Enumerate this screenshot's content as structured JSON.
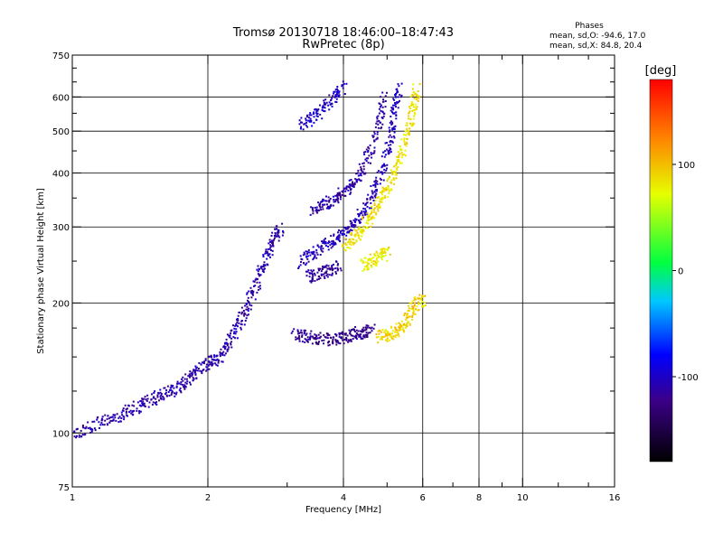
{
  "chart_data": {
    "type": "scatter",
    "title": "Tromsø 20130718 18:46:00–18:47:43",
    "subtitle": "RwPretec (8p)",
    "stats": {
      "heading": "Phases",
      "line1": "mean, sd,O: -94.6, 17.0",
      "line2": "mean, sd,X:  84.8, 20.4"
    },
    "xlabel": "Frequency [MHz]",
    "ylabel": "Stationary phase Virtual Height [km]",
    "xscale": "log",
    "yscale": "log",
    "xlim": [
      1,
      16
    ],
    "ylim": [
      75,
      750
    ],
    "xticks": [
      {
        "v": 1,
        "label": "1"
      },
      {
        "v": 2,
        "label": "2"
      },
      {
        "v": 4,
        "label": "4"
      },
      {
        "v": 6,
        "label": "6"
      },
      {
        "v": 8,
        "label": "8"
      },
      {
        "v": 10,
        "label": "10"
      },
      {
        "v": 16,
        "label": "16"
      }
    ],
    "xminor": [
      3,
      5,
      7,
      9,
      12,
      14
    ],
    "xgrid": [
      2,
      4,
      6,
      8,
      10
    ],
    "yticks": [
      {
        "v": 75,
        "label": "75"
      },
      {
        "v": 100,
        "label": "100"
      },
      {
        "v": 200,
        "label": "200"
      },
      {
        "v": 300,
        "label": "300"
      },
      {
        "v": 400,
        "label": "400"
      },
      {
        "v": 500,
        "label": "500"
      },
      {
        "v": 600,
        "label": "600"
      },
      {
        "v": 750,
        "label": "750"
      }
    ],
    "yminor": [
      125,
      150,
      175,
      250,
      350,
      450,
      550,
      650,
      700
    ],
    "ygrid": [
      100,
      200,
      300,
      400,
      500,
      600
    ],
    "grid": true,
    "legend": "colorbar-right",
    "colorbar": {
      "label": "[deg]",
      "range": [
        -180,
        180
      ],
      "ticks": [
        {
          "v": 100,
          "label": "100"
        },
        {
          "v": 0,
          "label": "0"
        },
        {
          "v": -100,
          "label": "-100"
        }
      ]
    },
    "series": [
      {
        "kind": "o-trace",
        "phase": -110,
        "points": [
          [
            1.0,
            100
          ],
          [
            1.1,
            104
          ],
          [
            1.2,
            108
          ],
          [
            1.3,
            112
          ],
          [
            1.4,
            116
          ],
          [
            1.5,
            120
          ],
          [
            1.6,
            124
          ],
          [
            1.7,
            128
          ],
          [
            1.8,
            134
          ],
          [
            1.9,
            140
          ],
          [
            2.0,
            145
          ],
          [
            2.1,
            150
          ],
          [
            2.2,
            160
          ],
          [
            2.3,
            175
          ],
          [
            2.4,
            190
          ],
          [
            2.5,
            210
          ],
          [
            2.6,
            235
          ],
          [
            2.7,
            260
          ],
          [
            2.8,
            285
          ],
          [
            2.9,
            300
          ]
        ]
      },
      {
        "kind": "o-trace",
        "phase": -105,
        "points": [
          [
            3.2,
            250
          ],
          [
            3.4,
            262
          ],
          [
            3.6,
            272
          ],
          [
            3.8,
            282
          ],
          [
            4.0,
            292
          ],
          [
            4.2,
            305
          ],
          [
            4.4,
            325
          ],
          [
            4.6,
            355
          ],
          [
            4.8,
            395
          ],
          [
            5.0,
            450
          ],
          [
            5.1,
            510
          ],
          [
            5.2,
            580
          ],
          [
            5.3,
            640
          ]
        ]
      },
      {
        "kind": "o-trace",
        "phase": -112,
        "points": [
          [
            3.4,
            330
          ],
          [
            3.6,
            340
          ],
          [
            3.8,
            350
          ],
          [
            4.0,
            362
          ],
          [
            4.2,
            380
          ],
          [
            4.4,
            410
          ],
          [
            4.6,
            460
          ],
          [
            4.8,
            530
          ],
          [
            4.9,
            610
          ]
        ]
      },
      {
        "kind": "o-trace",
        "phase": -115,
        "points": [
          [
            3.3,
            230
          ],
          [
            3.5,
            235
          ],
          [
            3.7,
            240
          ],
          [
            3.9,
            245
          ]
        ]
      },
      {
        "kind": "o-trace",
        "phase": -120,
        "points": [
          [
            3.1,
            170
          ],
          [
            3.3,
            168
          ],
          [
            3.5,
            166
          ],
          [
            3.8,
            165
          ],
          [
            4.0,
            167
          ],
          [
            4.2,
            170
          ],
          [
            4.4,
            172
          ],
          [
            4.6,
            174
          ]
        ]
      },
      {
        "kind": "o-trace",
        "phase": -100,
        "points": [
          [
            3.2,
            520
          ],
          [
            3.4,
            540
          ],
          [
            3.6,
            565
          ],
          [
            3.8,
            600
          ],
          [
            4.0,
            640
          ]
        ]
      },
      {
        "kind": "x-trace",
        "phase": 85,
        "points": [
          [
            4.0,
            270
          ],
          [
            4.2,
            285
          ],
          [
            4.4,
            300
          ],
          [
            4.6,
            320
          ],
          [
            4.8,
            345
          ],
          [
            5.0,
            375
          ],
          [
            5.2,
            410
          ],
          [
            5.4,
            460
          ],
          [
            5.6,
            520
          ],
          [
            5.7,
            580
          ],
          [
            5.8,
            630
          ]
        ]
      },
      {
        "kind": "x-trace",
        "phase": 80,
        "points": [
          [
            4.4,
            245
          ],
          [
            4.6,
            250
          ],
          [
            4.8,
            258
          ],
          [
            5.0,
            262
          ]
        ]
      },
      {
        "kind": "x-trace",
        "phase": 90,
        "points": [
          [
            4.8,
            168
          ],
          [
            5.0,
            170
          ],
          [
            5.2,
            172
          ],
          [
            5.4,
            178
          ],
          [
            5.6,
            190
          ],
          [
            5.8,
            200
          ],
          [
            6.0,
            205
          ]
        ]
      }
    ]
  }
}
